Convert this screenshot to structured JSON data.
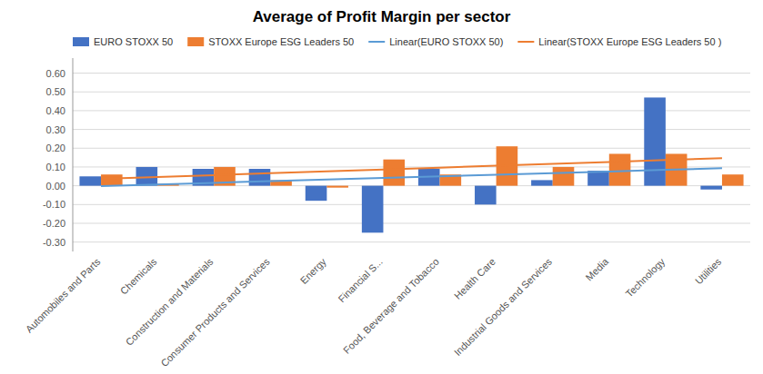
{
  "chart_data": {
    "type": "bar",
    "title": "Average of Profit Margin per sector",
    "categories": [
      "Automobiles and Parts",
      "Chemicals",
      "Construction and Materials",
      "Consumer Products and Services",
      "Energy",
      "Financial S...",
      "Food, Beverage and Tobacco",
      "Health Care",
      "Industrial Goods and Services",
      "Media",
      "Technology",
      "Utilities"
    ],
    "series": [
      {
        "name": "EURO STOXX 50",
        "type": "bar",
        "color": "#4472C4",
        "values": [
          0.05,
          0.1,
          0.09,
          0.09,
          -0.08,
          -0.25,
          0.09,
          -0.1,
          0.03,
          0.08,
          0.47,
          -0.02
        ]
      },
      {
        "name": "STOXX Europe ESG Leaders 50",
        "type": "bar",
        "color": "#ED7D31",
        "values": [
          0.06,
          0.01,
          0.1,
          0.03,
          -0.01,
          0.14,
          0.06,
          0.21,
          0.1,
          0.17,
          0.17,
          0.06
        ]
      },
      {
        "name": "Linear(EURO STOXX 50)",
        "type": "line",
        "color": "#5B9BD5",
        "values": [
          -0.0016667,
          0.0069697,
          0.0156061,
          0.0242424,
          0.0328788,
          0.0415152,
          0.0501515,
          0.0587879,
          0.0674242,
          0.0760606,
          0.084697,
          0.0933333
        ]
      },
      {
        "name": "Linear(STOXX Europe ESG Leaders 50 )",
        "type": "line",
        "color": "#ED7D31",
        "values": [
          0.0366667,
          0.0466667,
          0.0566667,
          0.0666667,
          0.0766667,
          0.0866667,
          0.0966667,
          0.1066667,
          0.1166667,
          0.1266667,
          0.1366667,
          0.1466667
        ]
      }
    ],
    "ylim": [
      -0.35,
      0.68
    ],
    "yticks": [
      {
        "value": -0.3,
        "label": "-0.30"
      },
      {
        "value": -0.2,
        "label": "-0.20"
      },
      {
        "value": -0.1,
        "label": "-0.10"
      },
      {
        "value": 0,
        "label": "0.00"
      },
      {
        "value": 0.1,
        "label": "0.10"
      },
      {
        "value": 0.2,
        "label": "0.20"
      },
      {
        "value": 0.3,
        "label": "0.30"
      },
      {
        "value": 0.4,
        "label": "0.40"
      },
      {
        "value": 0.5,
        "label": "0.50"
      },
      {
        "value": 0.6,
        "label": "0.60"
      }
    ],
    "grid": true,
    "legend": "top-left"
  }
}
